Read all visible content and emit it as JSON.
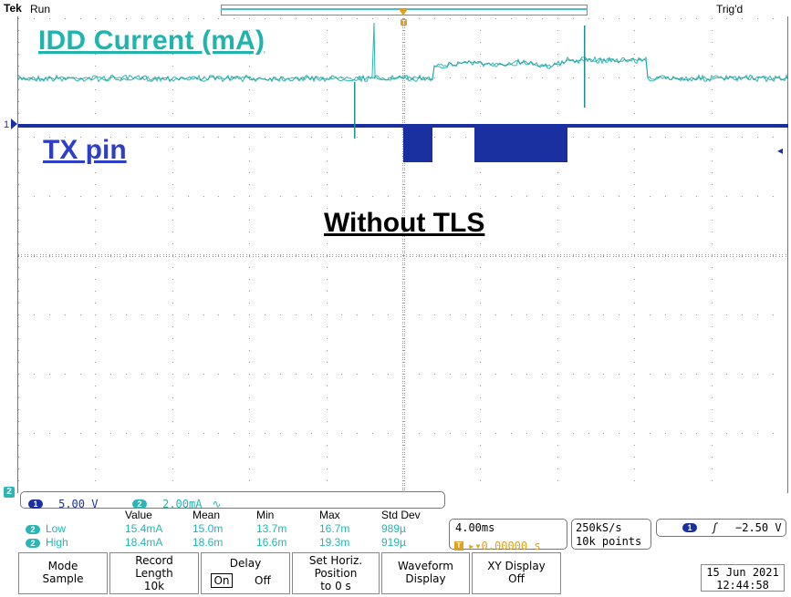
{
  "header": {
    "brand": "Tek",
    "run_state": "Run",
    "trigger_state": "Trig'd",
    "trigger_marker": "T"
  },
  "annotations": {
    "idd_label": "IDD Current (mA)",
    "tx_label": "TX pin",
    "condition_label": "Without TLS"
  },
  "markers": {
    "ch1": "1",
    "ch2": "2"
  },
  "colors": {
    "ch1": "#1a2fa0",
    "ch2": "#2bb5b5",
    "trigger": "#e0a020",
    "grid": "#9a9a9a"
  },
  "channels": {
    "ch1_chip": "1",
    "ch1_scale": "5.00 V",
    "ch2_chip": "2",
    "ch2_scale": "2.00mA",
    "ch2_bw_symbol": "∿"
  },
  "measurements": {
    "headers": [
      "Value",
      "Mean",
      "Min",
      "Max",
      "Std Dev"
    ],
    "rows": [
      {
        "chip": "2",
        "label": "Low",
        "values": [
          "15.4mA",
          "15.0m",
          "13.7m",
          "16.7m",
          "989µ"
        ]
      },
      {
        "chip": "2",
        "label": "High",
        "values": [
          "18.4mA",
          "18.6m",
          "16.6m",
          "19.3m",
          "919µ"
        ]
      }
    ]
  },
  "timebase": {
    "scale": "4.00ms",
    "trigger_chip": "T",
    "position": "▸▾0.00000 s"
  },
  "acquisition": {
    "rate": "250kS/s",
    "record": "10k points"
  },
  "trigger": {
    "source_chip": "1",
    "slope_symbol": "ʃ",
    "level": "−2.50 V"
  },
  "menu": {
    "mode": [
      "Mode",
      "Sample"
    ],
    "record_length": [
      "Record",
      "Length",
      "10k"
    ],
    "delay": [
      "Delay",
      "On",
      "Off"
    ],
    "horiz_pos": [
      "Set Horiz.",
      "Position",
      "to 0 s"
    ],
    "waveform": [
      "Waveform",
      "Display"
    ],
    "xy": [
      "XY Display",
      "Off"
    ]
  },
  "datetime": {
    "date": "15 Jun 2021",
    "time": "12:44:58"
  }
}
